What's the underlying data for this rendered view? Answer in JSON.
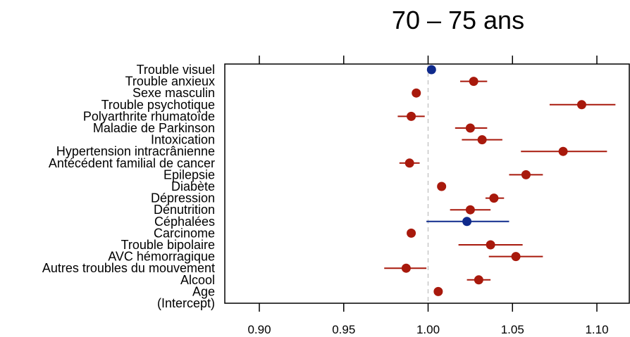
{
  "chart_data": {
    "type": "scatter",
    "subtype": "forest-plot",
    "title": "70 – 75 ans",
    "xlabel": "",
    "ylabel": "",
    "xlim": [
      0.88,
      1.112
    ],
    "xticks": [
      0.9,
      0.95,
      1.0,
      1.05,
      1.1
    ],
    "xtick_labels": [
      "0.90",
      "0.95",
      "1.00",
      "1.05",
      "1.10"
    ],
    "reference_line": 1.0,
    "grid": false,
    "colors": {
      "significant": "#a8190c",
      "non_significant": "#0f2a8c",
      "reference": "#c8c8c8"
    },
    "rows": [
      {
        "label": "Trouble visuel",
        "value": 1.002,
        "ci": null,
        "color": "#0f2a8c"
      },
      {
        "label": "Trouble anxieux",
        "value": 1.027,
        "ci": [
          1.019,
          1.035
        ],
        "color": "#a8190c"
      },
      {
        "label": "Sexe masculin",
        "value": 0.993,
        "ci": null,
        "color": "#a8190c"
      },
      {
        "label": "Trouble psychotique",
        "value": 1.091,
        "ci": [
          1.072,
          1.111
        ],
        "color": "#a8190c"
      },
      {
        "label": "Polyarthrite rhumatoïde",
        "value": 0.99,
        "ci": [
          0.982,
          0.998
        ],
        "color": "#a8190c"
      },
      {
        "label": "Maladie de Parkinson",
        "value": 1.025,
        "ci": [
          1.016,
          1.035
        ],
        "color": "#a8190c"
      },
      {
        "label": "Intoxication",
        "value": 1.032,
        "ci": [
          1.02,
          1.044
        ],
        "color": "#a8190c"
      },
      {
        "label": "Hypertension intracrânienne",
        "value": 1.08,
        "ci": [
          1.055,
          1.106
        ],
        "color": "#a8190c"
      },
      {
        "label": "Antécédent familial de cancer",
        "value": 0.989,
        "ci": [
          0.983,
          0.995
        ],
        "color": "#a8190c"
      },
      {
        "label": "Epilepsie",
        "value": 1.058,
        "ci": [
          1.048,
          1.068
        ],
        "color": "#a8190c"
      },
      {
        "label": "Diabète",
        "value": 1.008,
        "ci": null,
        "color": "#a8190c"
      },
      {
        "label": "Dépression",
        "value": 1.039,
        "ci": [
          1.034,
          1.045
        ],
        "color": "#a8190c"
      },
      {
        "label": "Dénutrition",
        "value": 1.025,
        "ci": [
          1.013,
          1.037
        ],
        "color": "#a8190c"
      },
      {
        "label": "Céphalées",
        "value": 1.023,
        "ci": [
          0.999,
          1.048
        ],
        "color": "#0f2a8c"
      },
      {
        "label": "Carcinome",
        "value": 0.99,
        "ci": null,
        "color": "#a8190c"
      },
      {
        "label": "Trouble bipolaire",
        "value": 1.037,
        "ci": [
          1.018,
          1.056
        ],
        "color": "#a8190c"
      },
      {
        "label": "AVC hémorragique",
        "value": 1.052,
        "ci": [
          1.036,
          1.068
        ],
        "color": "#a8190c"
      },
      {
        "label": "Autres troubles du mouvement",
        "value": 0.987,
        "ci": [
          0.974,
          0.999
        ],
        "color": "#a8190c"
      },
      {
        "label": "Alcool",
        "value": 1.03,
        "ci": [
          1.023,
          1.037
        ],
        "color": "#a8190c"
      },
      {
        "label": "Age",
        "value": 1.006,
        "ci": null,
        "color": "#a8190c"
      },
      {
        "label": "(Intercept)",
        "value": null,
        "ci": null,
        "color": "#a8190c"
      }
    ]
  }
}
